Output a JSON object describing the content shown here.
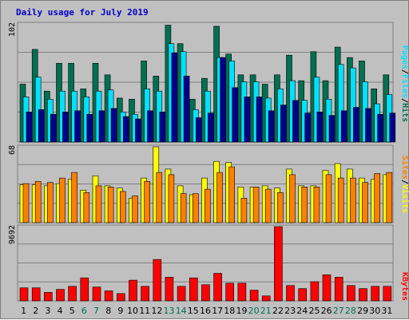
{
  "title": "Daily usage for July 2019",
  "colors": {
    "hits": "#007050",
    "files": "#00e0ff",
    "pages": "#00008b",
    "visits": "#ffff00",
    "sites": "#ff8000",
    "kbytes": "#ff0000",
    "weekend": "#007050",
    "weekday": "#000000",
    "separator": "#000000"
  },
  "labels": {
    "hits": "Hits",
    "files": "Files",
    "pages": "Pages",
    "visits": "Visits",
    "sites": "Sites",
    "kbytes": "KBytes",
    "separator": "/"
  },
  "chart_data": {
    "type": "bar",
    "title": "Daily usage for July 2019",
    "categories": [
      "1",
      "2",
      "3",
      "4",
      "5",
      "6",
      "7",
      "8",
      "9",
      "10",
      "11",
      "12",
      "13",
      "14",
      "15",
      "16",
      "17",
      "18",
      "19",
      "20",
      "21",
      "22",
      "23",
      "24",
      "25",
      "26",
      "27",
      "28",
      "29",
      "30",
      "31"
    ],
    "weekend_days": [
      "6",
      "7",
      "13",
      "14",
      "20",
      "21",
      "27",
      "28"
    ],
    "panels": [
      {
        "name": "hits_files_pages",
        "ymax": 102,
        "ymax_label": "102",
        "series": [
          {
            "name": "Hits",
            "values": [
              50,
              80,
              44,
              68,
              68,
              46,
              68,
              58,
              38,
              37,
              70,
              57,
              101,
              85,
              37,
              55,
              100,
              76,
              58,
              58,
              50,
              58,
              75,
              53,
              78,
              53,
              82,
              73,
              70,
              46,
              58
            ]
          },
          {
            "name": "Files",
            "values": [
              39,
              56,
              37,
              44,
              44,
              39,
              44,
              45,
              26,
              24,
              46,
              44,
              85,
              78,
              28,
              44,
              73,
              70,
              52,
              52,
              38,
              46,
              53,
              36,
              56,
              37,
              67,
              64,
              52,
              33,
              41
            ]
          },
          {
            "name": "Pages",
            "values": [
              26,
              28,
              24,
              26,
              27,
              24,
              27,
              29,
              22,
              20,
              27,
              26,
              77,
              57,
              21,
              25,
              73,
              47,
              39,
              39,
              27,
              32,
              36,
              25,
              26,
              23,
              27,
              30,
              29,
              24,
              25
            ]
          }
        ]
      },
      {
        "name": "visits_sites",
        "ymax": 68,
        "ymax_label": "68",
        "series": [
          {
            "name": "Visits",
            "values": [
              34,
              34,
              33,
              35,
              39,
              29,
              42,
              33,
              31,
              22,
              40,
              68,
              48,
              33,
              25,
              40,
              55,
              54,
              32,
              32,
              33,
              31,
              48,
              33,
              33,
              47,
              53,
              48,
              40,
              39,
              43
            ]
          },
          {
            "name": "Sites",
            "values": [
              35,
              37,
              36,
              40,
              45,
              27,
              33,
              32,
              28,
              24,
              37,
              45,
              43,
              26,
              26,
              30,
              45,
              50,
              22,
              32,
              30,
              27,
              43,
              32,
              32,
              43,
              40,
              40,
              36,
              44,
              45
            ]
          }
        ]
      },
      {
        "name": "kbytes",
        "ymax": 9692,
        "ymax_label": "9692",
        "series": [
          {
            "name": "KBytes",
            "values": [
              1700,
              1700,
              1100,
              1500,
              1900,
              3000,
              1800,
              1300,
              950,
              2700,
              1900,
              5400,
              3100,
              1900,
              3000,
              2100,
              3600,
              2300,
              2300,
              1400,
              650,
              9692,
              2000,
              1600,
              2500,
              3400,
              3100,
              2000,
              1600,
              1900,
              1900
            ]
          }
        ]
      }
    ]
  }
}
